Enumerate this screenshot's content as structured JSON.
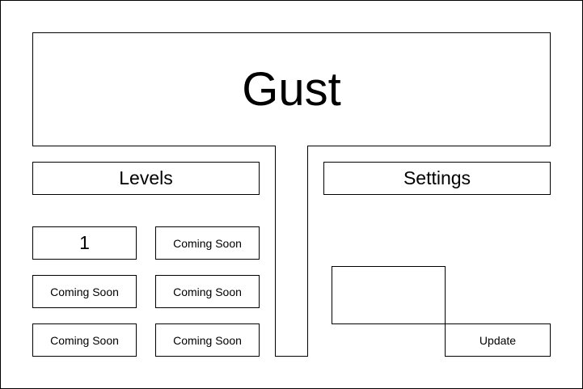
{
  "app": {
    "title": "Gust"
  },
  "sections": {
    "levels_label": "Levels",
    "settings_label": "Settings"
  },
  "levels": [
    {
      "label": "1"
    },
    {
      "label": "Coming Soon"
    },
    {
      "label": "Coming Soon"
    },
    {
      "label": "Coming Soon"
    },
    {
      "label": "Coming Soon"
    },
    {
      "label": "Coming Soon"
    }
  ],
  "settings": {
    "update_label": "Update"
  }
}
